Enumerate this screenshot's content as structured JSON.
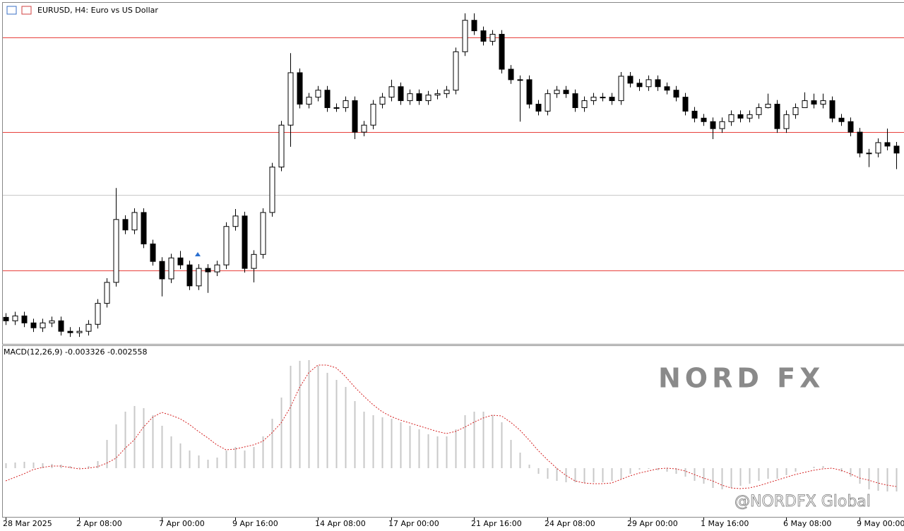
{
  "chart_data": [
    {
      "type": "candlestick",
      "title": "EURUSD, H4: Euro vs US Dollar",
      "categories": [
        "28 Mar 2025",
        null,
        null,
        null,
        null,
        null,
        null,
        null,
        "2 Apr 08:00",
        null,
        null,
        null,
        null,
        null,
        null,
        null,
        null,
        "7 Apr 00:00",
        null,
        null,
        null,
        null,
        null,
        null,
        null,
        "9 Apr 16:00",
        null,
        null,
        null,
        null,
        null,
        null,
        null,
        null,
        "14 Apr 08:00",
        null,
        null,
        null,
        null,
        null,
        null,
        null,
        "17 Apr 00:00",
        null,
        null,
        null,
        null,
        null,
        null,
        null,
        null,
        "21 Apr 16:00",
        null,
        null,
        null,
        null,
        null,
        null,
        null,
        "24 Apr 08:00",
        null,
        null,
        null,
        null,
        null,
        null,
        null,
        null,
        "29 Apr 00:00",
        null,
        null,
        null,
        null,
        null,
        null,
        null,
        "1 May 16:00",
        null,
        null,
        null,
        null,
        null,
        null,
        null,
        null,
        "6 May 08:00",
        null,
        null,
        null,
        null,
        null,
        null,
        null,
        "9 May 00:00",
        null,
        null,
        null,
        null
      ],
      "ohlc": [
        [
          1.07,
          1.0712,
          1.0678,
          1.069
        ],
        [
          1.069,
          1.0716,
          1.0678,
          1.0704
        ],
        [
          1.0704,
          1.0716,
          1.0672,
          1.0684
        ],
        [
          1.0684,
          1.0696,
          1.0658,
          1.067
        ],
        [
          1.067,
          1.0696,
          1.0658,
          1.0684
        ],
        [
          1.0684,
          1.0702,
          1.0672,
          1.069
        ],
        [
          1.069,
          1.0702,
          1.0648,
          1.066
        ],
        [
          1.066,
          1.0672,
          1.0644,
          1.0656
        ],
        [
          1.0656,
          1.0672,
          1.0644,
          1.066
        ],
        [
          1.066,
          1.0692,
          1.0648,
          1.068
        ],
        [
          1.068,
          1.0752,
          1.0668,
          1.074
        ],
        [
          1.074,
          1.0812,
          1.0728,
          1.08
        ],
        [
          1.08,
          1.107,
          1.0788,
          1.098
        ],
        [
          1.098,
          1.0992,
          1.0938,
          1.095
        ],
        [
          1.095,
          1.1012,
          1.0938,
          1.1
        ],
        [
          1.1,
          1.1012,
          1.0898,
          1.091
        ],
        [
          1.091,
          1.0922,
          1.0848,
          1.086
        ],
        [
          1.086,
          1.0872,
          1.076,
          1.081
        ],
        [
          1.081,
          1.0882,
          1.0798,
          1.087
        ],
        [
          1.087,
          1.089,
          1.0838,
          1.085
        ],
        [
          1.085,
          1.0862,
          1.0778,
          1.079
        ],
        [
          1.079,
          1.0852,
          1.0778,
          1.084
        ],
        [
          1.084,
          1.0852,
          1.077,
          1.083
        ],
        [
          1.083,
          1.0862,
          1.0818,
          1.085
        ],
        [
          1.085,
          1.0972,
          1.0838,
          1.096
        ],
        [
          1.096,
          1.101,
          1.0948,
          1.099
        ],
        [
          1.099,
          1.1002,
          1.0828,
          1.084
        ],
        [
          1.084,
          1.0892,
          1.08,
          1.088
        ],
        [
          1.088,
          1.1012,
          1.0868,
          1.1
        ],
        [
          1.1,
          1.1142,
          1.0988,
          1.113
        ],
        [
          1.113,
          1.1262,
          1.1118,
          1.125
        ],
        [
          1.125,
          1.1456,
          1.1188,
          1.14
        ],
        [
          1.14,
          1.1412,
          1.1298,
          1.131
        ],
        [
          1.131,
          1.1342,
          1.1298,
          1.133
        ],
        [
          1.133,
          1.1362,
          1.1318,
          1.135
        ],
        [
          1.135,
          1.1362,
          1.1288,
          1.13
        ],
        [
          1.13,
          1.1312,
          1.1288,
          1.13
        ],
        [
          1.13,
          1.1332,
          1.1288,
          1.132
        ],
        [
          1.132,
          1.1332,
          1.121,
          1.123
        ],
        [
          1.123,
          1.1262,
          1.1218,
          1.125
        ],
        [
          1.125,
          1.1322,
          1.1238,
          1.131
        ],
        [
          1.131,
          1.1342,
          1.1298,
          1.133
        ],
        [
          1.133,
          1.138,
          1.1318,
          1.136
        ],
        [
          1.136,
          1.1372,
          1.1308,
          1.132
        ],
        [
          1.132,
          1.1352,
          1.1308,
          1.134
        ],
        [
          1.134,
          1.1352,
          1.1308,
          1.132
        ],
        [
          1.132,
          1.1348,
          1.1308,
          1.1336
        ],
        [
          1.1336,
          1.1352,
          1.1324,
          1.134
        ],
        [
          1.134,
          1.1362,
          1.1328,
          1.135
        ],
        [
          1.135,
          1.1472,
          1.1338,
          1.146
        ],
        [
          1.146,
          1.157,
          1.1448,
          1.155
        ],
        [
          1.155,
          1.157,
          1.1508,
          1.152
        ],
        [
          1.152,
          1.1532,
          1.1478,
          1.149
        ],
        [
          1.149,
          1.1522,
          1.1478,
          1.151
        ],
        [
          1.151,
          1.1522,
          1.1398,
          1.141
        ],
        [
          1.141,
          1.1422,
          1.1368,
          1.138
        ],
        [
          1.138,
          1.1392,
          1.126,
          1.138
        ],
        [
          1.138,
          1.1392,
          1.1298,
          1.131
        ],
        [
          1.131,
          1.1322,
          1.1278,
          1.129
        ],
        [
          1.129,
          1.1352,
          1.1278,
          1.134
        ],
        [
          1.134,
          1.1362,
          1.1328,
          1.135
        ],
        [
          1.135,
          1.1362,
          1.1328,
          1.134
        ],
        [
          1.134,
          1.1352,
          1.1288,
          1.13
        ],
        [
          1.13,
          1.1332,
          1.1288,
          1.132
        ],
        [
          1.132,
          1.1342,
          1.1308,
          1.133
        ],
        [
          1.133,
          1.1342,
          1.1318,
          1.133
        ],
        [
          1.133,
          1.1342,
          1.1308,
          1.132
        ],
        [
          1.132,
          1.1402,
          1.1308,
          1.139
        ],
        [
          1.139,
          1.1402,
          1.1358,
          1.137
        ],
        [
          1.137,
          1.1382,
          1.1348,
          1.136
        ],
        [
          1.136,
          1.1392,
          1.1348,
          1.138
        ],
        [
          1.138,
          1.1392,
          1.1348,
          1.136
        ],
        [
          1.136,
          1.1372,
          1.1338,
          1.135
        ],
        [
          1.135,
          1.1362,
          1.1318,
          1.133
        ],
        [
          1.133,
          1.1342,
          1.1278,
          1.129
        ],
        [
          1.129,
          1.1302,
          1.1258,
          1.127
        ],
        [
          1.127,
          1.1282,
          1.1248,
          1.126
        ],
        [
          1.126,
          1.1272,
          1.121,
          1.124
        ],
        [
          1.124,
          1.1272,
          1.1228,
          1.126
        ],
        [
          1.126,
          1.1292,
          1.1248,
          1.128
        ],
        [
          1.128,
          1.1292,
          1.1258,
          1.127
        ],
        [
          1.127,
          1.1292,
          1.1258,
          1.128
        ],
        [
          1.128,
          1.1312,
          1.1268,
          1.13
        ],
        [
          1.13,
          1.134,
          1.1298,
          1.131
        ],
        [
          1.131,
          1.1322,
          1.1228,
          1.124
        ],
        [
          1.124,
          1.1292,
          1.1228,
          1.128
        ],
        [
          1.128,
          1.1312,
          1.1268,
          1.13
        ],
        [
          1.13,
          1.1344,
          1.1308,
          1.132
        ],
        [
          1.132,
          1.134,
          1.1298,
          1.131
        ],
        [
          1.131,
          1.134,
          1.1298,
          1.132
        ],
        [
          1.132,
          1.1332,
          1.1258,
          1.127
        ],
        [
          1.127,
          1.1282,
          1.1248,
          1.126
        ],
        [
          1.126,
          1.1272,
          1.1218,
          1.123
        ],
        [
          1.123,
          1.1242,
          1.1158,
          1.117
        ],
        [
          1.117,
          1.1182,
          1.113,
          1.117
        ],
        [
          1.117,
          1.1212,
          1.1158,
          1.12
        ],
        [
          1.12,
          1.124,
          1.1178,
          1.119
        ],
        [
          1.119,
          1.1202,
          1.1124,
          1.117
        ]
      ],
      "ylim": [
        1.0624,
        1.16
      ],
      "levels": [
        1.15,
        1.123,
        1.0834
      ],
      "level_color": "#e8413c",
      "price_line": 1.105,
      "price_line_color": "#c8c8c8",
      "up_color": "#ffffff",
      "down_color": "#000000"
    },
    {
      "type": "macd",
      "title": "MACD(12,26,9) -0.003326 -0.002558",
      "values": [
        0.0007,
        0.0008,
        0.0009,
        0.0008,
        0.0007,
        0.0006,
        0.0005,
        0.0003,
        0.0001,
        0.0003,
        0.001,
        0.004,
        0.0062,
        0.008,
        0.0088,
        0.0085,
        0.0075,
        0.006,
        0.0045,
        0.0035,
        0.0025,
        0.0018,
        0.0012,
        0.0015,
        0.0025,
        0.003,
        0.0025,
        0.003,
        0.0045,
        0.007,
        0.01,
        0.0145,
        0.0152,
        0.0153,
        0.0145,
        0.0135,
        0.0125,
        0.0115,
        0.0095,
        0.008,
        0.0075,
        0.0072,
        0.007,
        0.0065,
        0.006,
        0.0055,
        0.0048,
        0.0045,
        0.0045,
        0.0055,
        0.0075,
        0.008,
        0.008,
        0.0075,
        0.0065,
        0.004,
        0.0022,
        0.0005,
        -0.0008,
        -0.0015,
        -0.0018,
        -0.002,
        -0.002,
        -0.0021,
        -0.002,
        -0.002,
        -0.0018,
        -0.0015,
        -0.0008,
        -0.0002,
        -0.0001,
        -0.0003,
        -0.0005,
        -0.0008,
        -0.0012,
        -0.0018,
        -0.0022,
        -0.0028,
        -0.003,
        -0.0028,
        -0.0025,
        -0.0022,
        -0.0018,
        -0.0015,
        -0.0015,
        -0.001,
        -0.0005,
        0,
        0.0002,
        0.0003,
        0,
        -0.0005,
        -0.0012,
        -0.0022,
        -0.003,
        -0.0032,
        -0.0033,
        -0.0033
      ],
      "signal": [
        -0.0018,
        -0.0013,
        -0.0008,
        -0.0002,
        0.0001,
        0.0003,
        0.0003,
        0.0001,
        -0.0001,
        0,
        0.0002,
        0.0007,
        0.0014,
        0.0028,
        0.004,
        0.0058,
        0.0072,
        0.0079,
        0.0075,
        0.007,
        0.0062,
        0.0052,
        0.0043,
        0.0033,
        0.0026,
        0.0027,
        0.003,
        0.0033,
        0.0038,
        0.005,
        0.0064,
        0.0086,
        0.0114,
        0.0135,
        0.0146,
        0.0146,
        0.0142,
        0.013,
        0.0115,
        0.0102,
        0.009,
        0.008,
        0.0073,
        0.0068,
        0.0064,
        0.006,
        0.0056,
        0.0052,
        0.0049,
        0.0052,
        0.0058,
        0.0065,
        0.0071,
        0.0075,
        0.0074,
        0.0065,
        0.0054,
        0.004,
        0.0025,
        0.0012,
        0,
        -0.001,
        -0.0018,
        -0.0021,
        -0.0022,
        -0.0022,
        -0.0021,
        -0.0016,
        -0.0011,
        -0.0007,
        -0.0004,
        -0.0001,
        0,
        -0.0001,
        -0.0004,
        -0.0009,
        -0.0014,
        -0.0018,
        -0.0024,
        -0.0028,
        -0.0029,
        -0.0028,
        -0.0025,
        -0.0021,
        -0.0017,
        -0.0013,
        -0.0009,
        -0.0006,
        -0.0003,
        -0.0001,
        0,
        -0.0003,
        -0.0008,
        -0.0014,
        -0.0017,
        -0.0021,
        -0.0024,
        -0.0026
      ],
      "ylim": [
        -0.0069,
        0.0173
      ],
      "histogram_color": "#c8c8c8",
      "signal_color": "#d42020"
    }
  ],
  "watermark": "NORD FX",
  "credit": "@NORDFX Global"
}
